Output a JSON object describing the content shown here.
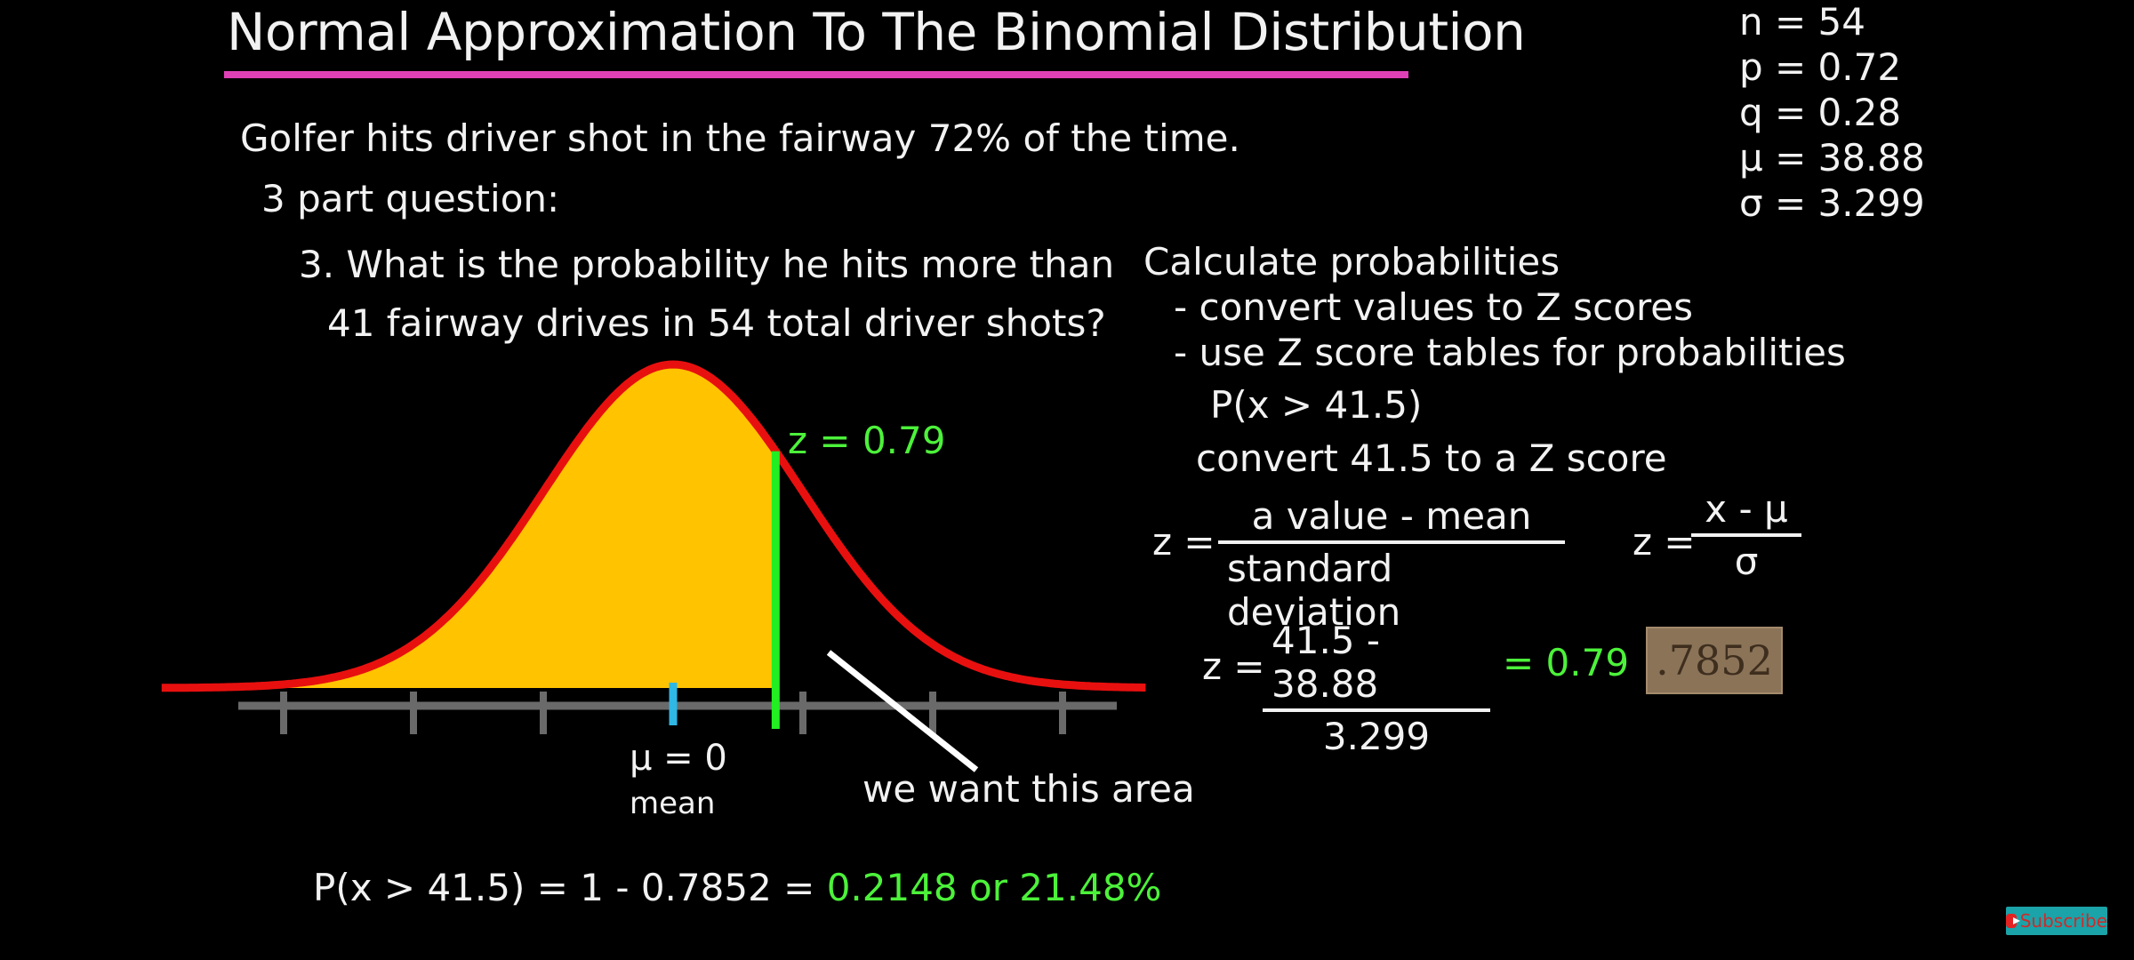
{
  "title": "Normal Approximation To The Binomial Distribution",
  "params": [
    "n = 54",
    "p = 0.72",
    "q = 0.28",
    "μ = 38.88",
    "σ = 3.299"
  ],
  "problem": {
    "statement": "Golfer hits driver shot in the fairway 72% of the time.",
    "parts": "3 part question:",
    "question_line1": "3.  What is the probability he hits more than",
    "question_line2": "41 fairway drives in 54 total driver shots?"
  },
  "steps": {
    "heading": "Calculate probabilities",
    "step1": "- convert values to Z scores",
    "step2": "- use Z score tables for probabilities",
    "target": "P(x > 41.5)",
    "convert": "convert 41.5 to a Z score"
  },
  "formula_words": {
    "lhs": "z =",
    "numerator": "a value - mean",
    "denominator": "standard deviation"
  },
  "formula_symbols": {
    "lhs": "z =",
    "numerator": "x - μ",
    "denominator": "σ"
  },
  "computation": {
    "lhs": "z =",
    "numerator": "41.5 - 38.88",
    "denominator": "3.299",
    "result": "= 0.79"
  },
  "table_value": ".7852",
  "graph": {
    "z_label": "z = 0.79",
    "mean_symbol": "μ = 0",
    "mean_word": "mean",
    "arrow_label": "we want this area",
    "z_value": 0.79,
    "mean_value": 0,
    "tick_z_values": [
      -3,
      -2,
      -1,
      1,
      2,
      3
    ],
    "colors": {
      "curve": "#e8100f",
      "fill": "#ffc300",
      "z_line": "#22ee22",
      "mean_tick": "#2fb7e6",
      "axis": "#6a6a6a",
      "pointer": "#ffffff"
    }
  },
  "final_answer": {
    "prefix": "P(x > 41.5) = 1 - 0.7852 = ",
    "result": "0.2148 or 21.48%"
  },
  "subscribe_label": "Subscribe"
}
